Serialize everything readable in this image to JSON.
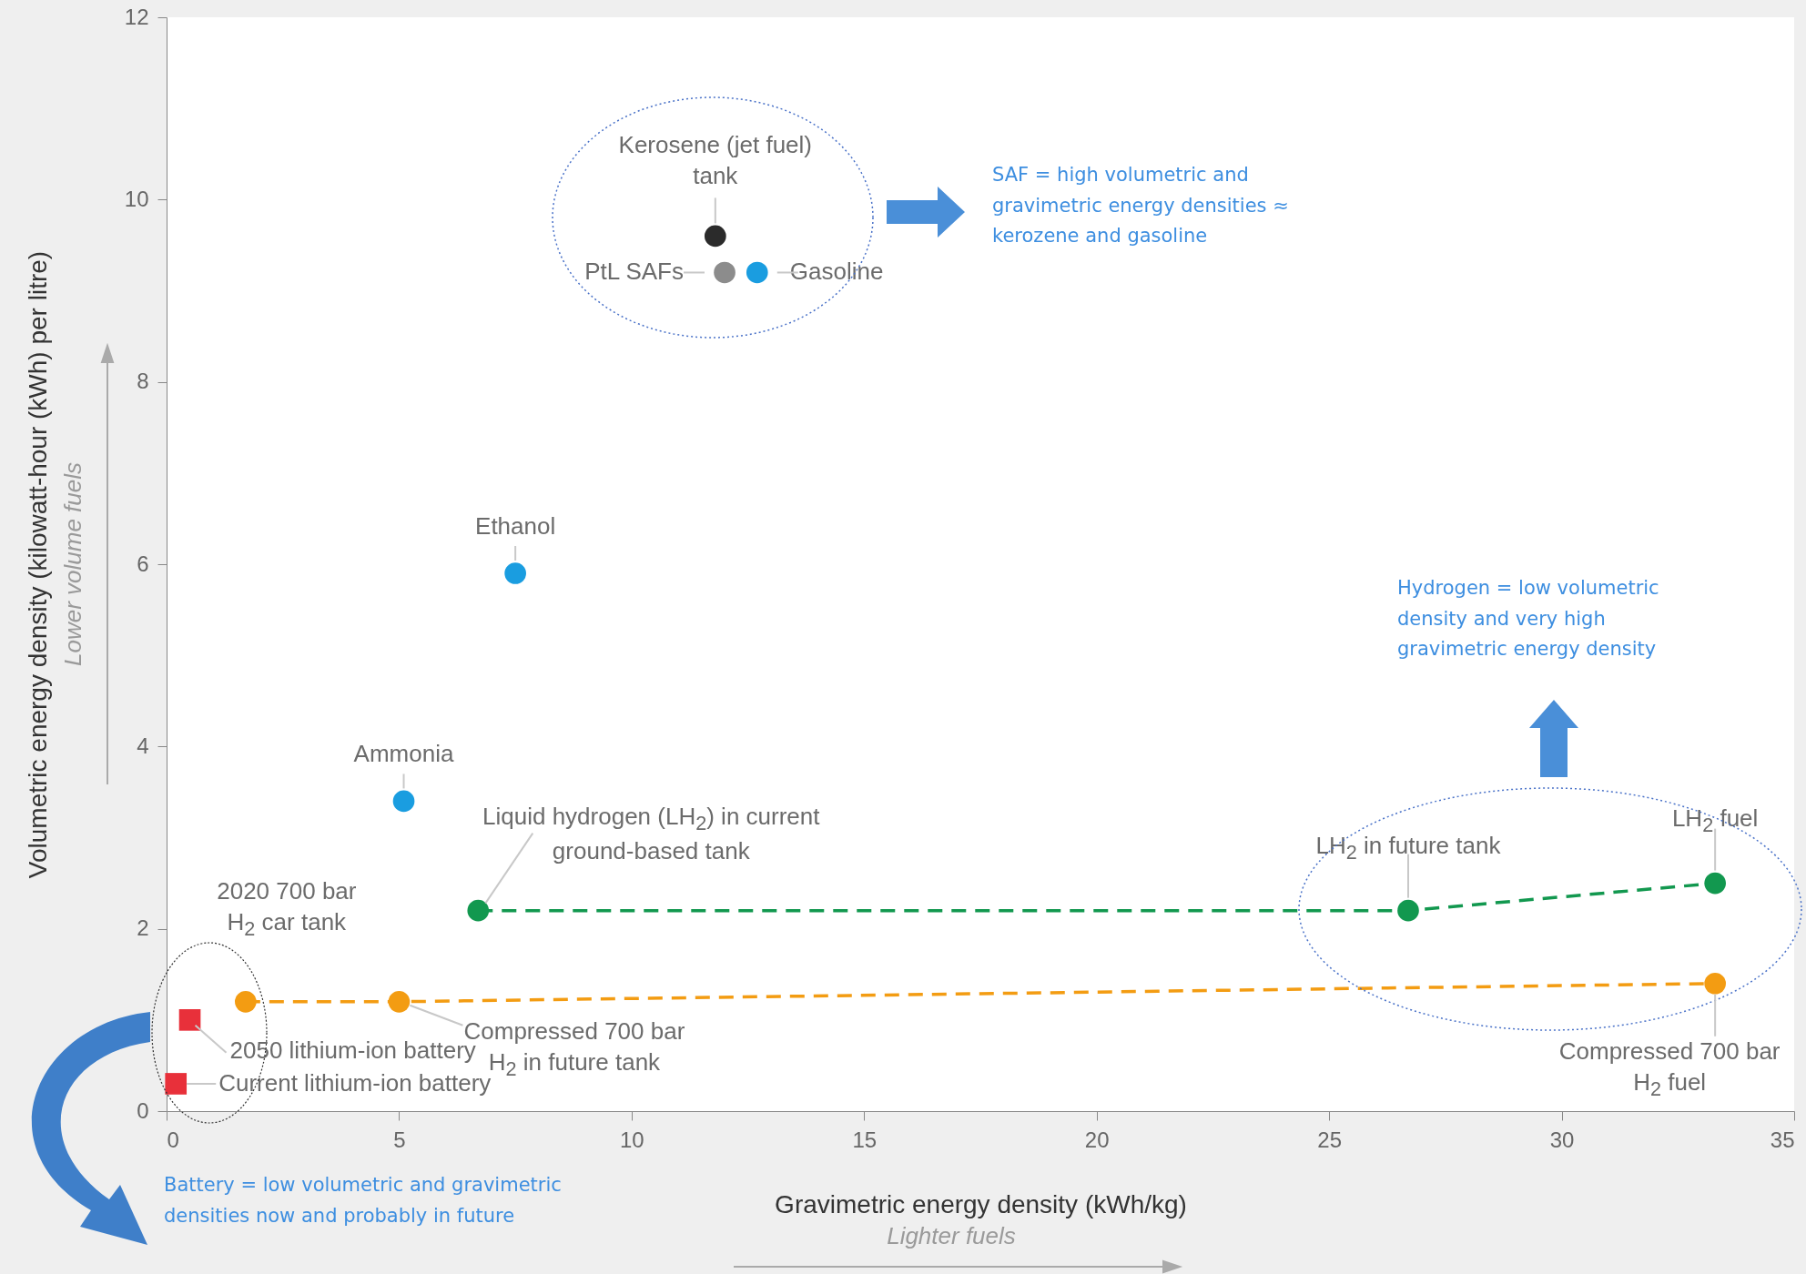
{
  "chart_data": {
    "type": "scatter",
    "xlabel": "Gravimetric energy density (kWh/kg)",
    "ylabel": "Volumetric energy density (kilowatt-hour (kWh) per litre)",
    "xlim": [
      0,
      35
    ],
    "xticks": [
      0,
      5,
      10,
      15,
      20,
      25,
      30,
      35
    ],
    "ylim": [
      0,
      12
    ],
    "yticks": [
      0,
      2,
      4,
      6,
      8,
      10,
      12
    ],
    "marker": "circle",
    "series": [
      {
        "type": "line",
        "line_style": "dashed",
        "color": "#12984f",
        "x": [
          6.7,
          26.7,
          33.3
        ],
        "values": [
          2.2,
          2.2,
          2.5
        ]
      },
      {
        "type": "line",
        "line_style": "dashed",
        "color": "#f39c12",
        "x": [
          1.7,
          5.0,
          33.3
        ],
        "values": [
          1.2,
          1.2,
          1.4
        ]
      },
      {
        "color": "#1a9de0",
        "x": [
          12.7,
          7.5,
          5.1
        ],
        "values": [
          9.2,
          5.9,
          3.4
        ]
      },
      {
        "color": "#2b2b2b",
        "x": [
          11.8
        ],
        "values": [
          9.6
        ]
      },
      {
        "color": "#8c8c8c",
        "x": [
          12.0
        ],
        "values": [
          9.2
        ]
      },
      {
        "color": "#e8303a",
        "marker": "square",
        "x": [
          0.5,
          0.2
        ],
        "values": [
          1.0,
          0.3
        ]
      }
    ],
    "annotations": [
      {
        "text": "Kerosene (jet fuel) tank",
        "x": 11.8,
        "y": 9.6
      },
      {
        "text": "PtL SAFs",
        "x": 12.0,
        "y": 9.2
      },
      {
        "text": "Gasoline",
        "x": 12.7,
        "y": 9.2
      },
      {
        "text": "Ethanol",
        "x": 7.5,
        "y": 5.9
      },
      {
        "text": "Ammonia",
        "x": 5.1,
        "y": 3.4
      },
      {
        "text": "Liquid hydrogen (LH$_{2}$) in current ground-based tank",
        "x": 6.7,
        "y": 2.2
      },
      {
        "text": "LH$_{2}$ in future tank",
        "x": 26.7,
        "y": 2.2
      },
      {
        "text": "LH$_{2}$ fuel",
        "x": 33.3,
        "y": 2.5
      },
      {
        "text": "2020 700 bar H$_{2}$ car tank",
        "x": 1.7,
        "y": 1.2
      },
      {
        "text": "Compressed 700 bar H$_{2}$ in future tank",
        "x": 5.0,
        "y": 1.2
      },
      {
        "text": "Compressed 700 bar H$_{2}$ fuel",
        "x": 33.3,
        "y": 1.4
      },
      {
        "text": "2050 lithium-ion battery",
        "x": 0.5,
        "y": 1.0
      },
      {
        "text": "Current lithium-ion battery",
        "x": 0.2,
        "y": 0.3
      },
      "SAF = high volumetric and gravimetric energy densities ≈ kerozene and gasoline",
      "Hydrogen = low volumetric density and very high gravimetric energy density",
      "Battery = low volumetric and gravimetric densities now and probably in future",
      "Lower volume fuels",
      "Lighter fuels"
    ]
  }
}
